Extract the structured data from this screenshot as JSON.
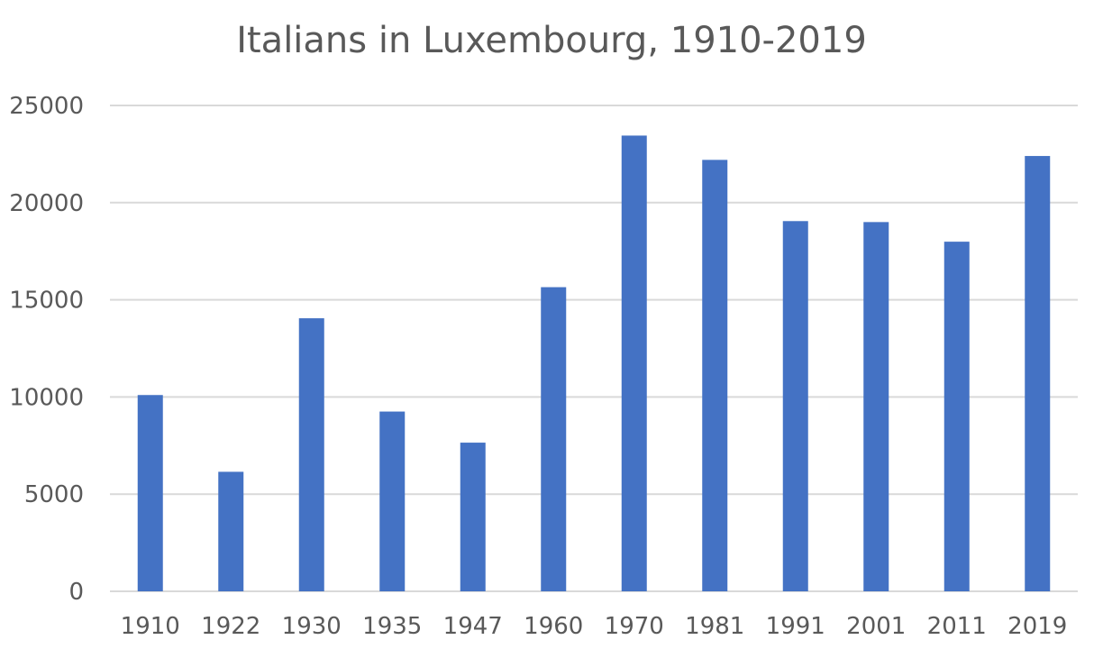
{
  "chart_data": {
    "type": "bar",
    "title": "Italians in Luxembourg, 1910-2019",
    "xlabel": "",
    "ylabel": "",
    "categories": [
      "1910",
      "1922",
      "1930",
      "1935",
      "1947",
      "1960",
      "1970",
      "1981",
      "1991",
      "2001",
      "2011",
      "2019"
    ],
    "values": [
      10100,
      6150,
      14050,
      9250,
      7650,
      15650,
      23450,
      22200,
      19050,
      19000,
      17990,
      22400
    ],
    "ylim": [
      0,
      25000
    ],
    "yticks": [
      0,
      5000,
      10000,
      15000,
      20000,
      25000
    ],
    "grid": true,
    "legend": null,
    "bar_color": "#4472C4"
  }
}
